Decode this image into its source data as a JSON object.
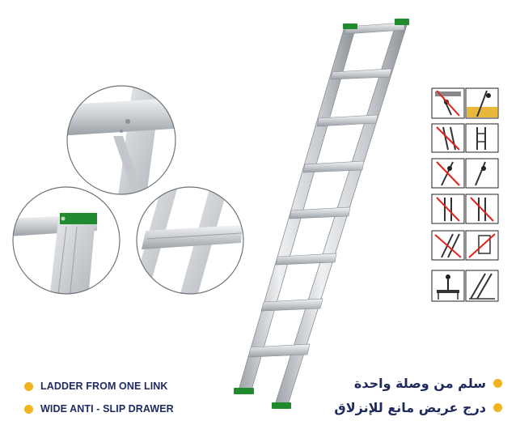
{
  "colors": {
    "accent_dot": "#f2b321",
    "text": "#1e2a5e",
    "cap_green": "#1f8a2e",
    "aluminium": "#d3d6d9",
    "safety_red": "#e0231c",
    "safety_amber": "#e8b83c"
  },
  "features_en": [
    {
      "label": "LADDER FROM ONE LINK"
    },
    {
      "label": "WIDE ANTI - SLIP DRAWER"
    }
  ],
  "features_ar": [
    {
      "label": "سلم من وصلة واحدة"
    },
    {
      "label": "درج عريض مانع للإنزلاق"
    }
  ],
  "product": {
    "type": "single-section aluminium ladder",
    "rungs": 8,
    "detail_views": [
      "rung-joint-closeup",
      "top-cap-closeup",
      "wide-step-closeup"
    ]
  },
  "safety_icons": [
    {
      "left": "do-not-climb-above-overhead-icon",
      "right": "ladder-against-wall-correct-icon"
    },
    {
      "left": "do-not-stand-sideways-icon",
      "right": "ladder-straight-icon"
    },
    {
      "left": "do-not-carry-load-icon",
      "right": "climb-facing-ladder-icon"
    },
    {
      "left": "do-not-overreach-icon",
      "right": "do-not-lean-back-icon"
    },
    {
      "left": "check-ladder-condition-icon",
      "right": "check-feet-icon"
    },
    {
      "left": "stand-on-platform-icon",
      "right": "ladder-angle-icon"
    }
  ]
}
